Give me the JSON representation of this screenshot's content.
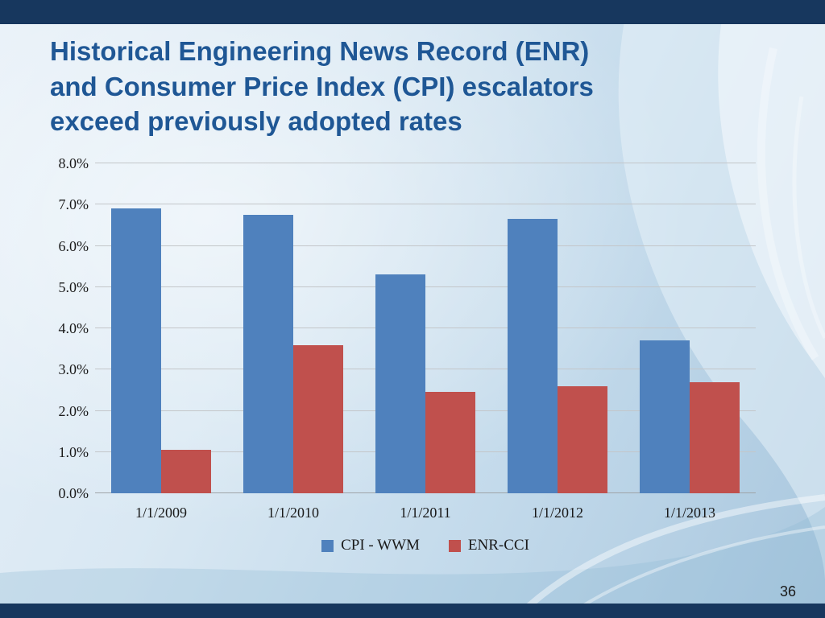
{
  "header": {
    "title_lines": [
      "Historical Engineering News Record (ENR)",
      "and Consumer Price Index (CPI) escalators",
      "exceed previously adopted rates"
    ]
  },
  "footer": {
    "page_number": "36"
  },
  "colors": {
    "top_bar": "#17375E",
    "bottom_bar": "#17375E",
    "title_text": "#1F5795",
    "gridline": "#C3C6C9",
    "series_cpi": "#4F81BD",
    "series_enr": "#C0504D"
  },
  "chart_data": {
    "type": "bar",
    "categories": [
      "1/1/2009",
      "1/1/2010",
      "1/1/2011",
      "1/1/2012",
      "1/1/2013"
    ],
    "series": [
      {
        "name": "CPI - WWM",
        "color": "#4F81BD",
        "values": [
          6.9,
          6.75,
          5.3,
          6.65,
          3.7
        ]
      },
      {
        "name": "ENR-CCI",
        "color": "#C0504D",
        "values": [
          1.05,
          3.6,
          2.45,
          2.6,
          2.7
        ]
      }
    ],
    "ylim": [
      0,
      8
    ],
    "ytick_labels": [
      "0.0%",
      "1.0%",
      "2.0%",
      "3.0%",
      "4.0%",
      "5.0%",
      "6.0%",
      "7.0%",
      "8.0%"
    ],
    "grid": true,
    "legend_position": "bottom"
  }
}
